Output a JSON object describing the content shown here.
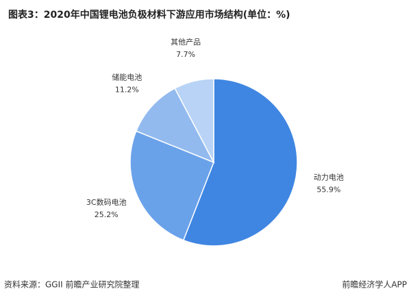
{
  "chart_data": {
    "type": "pie",
    "title": "图表3：2020年中国锂电池负极材料下游应用市场结构(单位：%)",
    "categories": [
      "动力电池",
      "3C数码电池",
      "储能电池",
      "其他产品"
    ],
    "values": [
      55.9,
      25.2,
      11.2,
      7.7
    ],
    "value_labels": [
      "55.9%",
      "25.2%",
      "11.2%",
      "7.7%"
    ],
    "colors": [
      "#3f86e2",
      "#6aa2ea",
      "#92baef",
      "#b8d3f5"
    ]
  },
  "footer": {
    "source": "资料来源：GGII 前瞻产业研究院整理",
    "brand": "前瞻经济学人APP"
  }
}
